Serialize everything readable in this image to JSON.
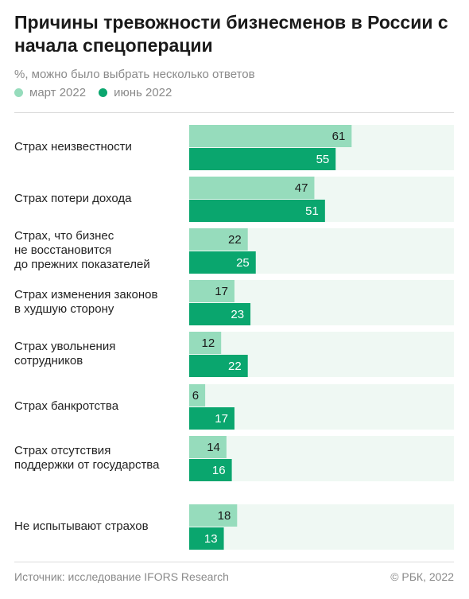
{
  "header": {
    "title": "Причины тревожности бизнесменов в России с начала спецоперации",
    "subtitle": "%, можно было выбрать несколько ответов"
  },
  "legend": [
    {
      "label": "март 2022",
      "color": "#96dcbc"
    },
    {
      "label": "июнь 2022",
      "color": "#0aa66e"
    }
  ],
  "colors": {
    "track": "#eff8f3",
    "march": "#96dcbc",
    "june": "#0aa66e"
  },
  "chart_data": {
    "type": "bar",
    "orientation": "horizontal",
    "categories": [
      "Страх неизвестности",
      "Страх потери дохода",
      "Страх, что бизнес не восстановится до прежних показателей",
      "Страх изменения законов в худшую сторону",
      "Страх увольнения сотрудников",
      "Страх банкротства",
      "Страх отсутствия поддержки от государства",
      "Не испытывают страхов"
    ],
    "category_lines": [
      [
        "Страх неизвестности"
      ],
      [
        "Страх потери дохода"
      ],
      [
        "Страх, что бизнес",
        "не восстановится",
        "до прежних показателей"
      ],
      [
        "Страх изменения законов",
        "в худшую сторону"
      ],
      [
        "Страх увольнения",
        "сотрудников"
      ],
      [
        "Страх банкротства"
      ],
      [
        "Страх отсутствия",
        "поддержки от государства"
      ],
      [
        "Не испытывают страхов"
      ]
    ],
    "series": [
      {
        "name": "март 2022",
        "values": [
          61,
          47,
          22,
          17,
          12,
          6,
          14,
          18
        ]
      },
      {
        "name": "июнь 2022",
        "values": [
          55,
          51,
          25,
          23,
          22,
          17,
          16,
          13
        ]
      }
    ],
    "xlim": [
      0,
      100
    ],
    "grid": false,
    "legend_position": "top-left"
  },
  "footer": {
    "source": "Источник: исследование IFORS Research",
    "copyright": "© РБК, 2022"
  }
}
